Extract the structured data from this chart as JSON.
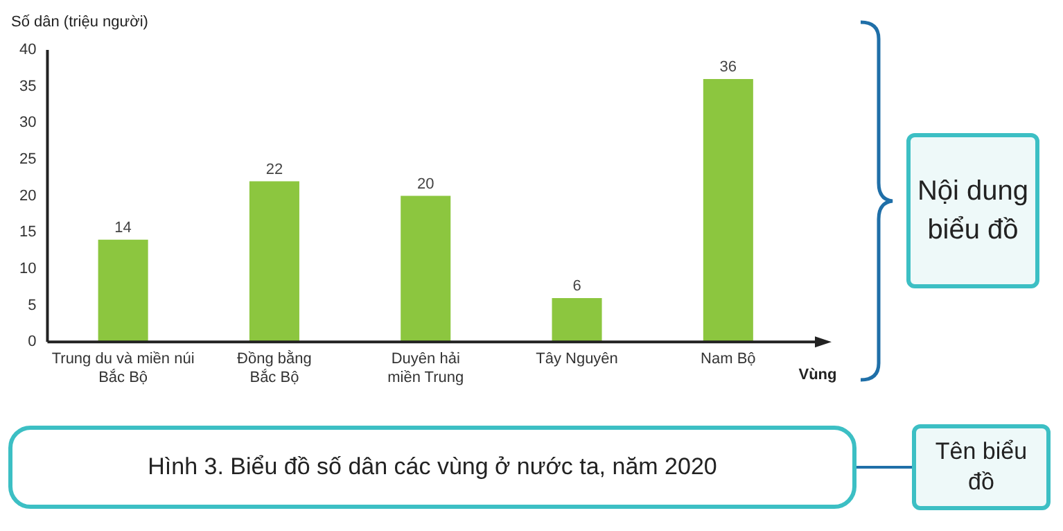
{
  "chart_data": {
    "type": "bar",
    "title": "Hình 3. Biểu đồ số dân các vùng ở nước ta, năm 2020",
    "xlabel": "Vùng",
    "ylabel": "Số dân (triệu người)",
    "categories": [
      "Trung du và miền núi\nBắc Bộ",
      "Đồng bằng\nBắc Bộ",
      "Duyên hải\nmiền Trung",
      "Tây Nguyên",
      "Nam Bộ"
    ],
    "values": [
      14,
      22,
      20,
      6,
      36
    ],
    "color": "#8cc63f",
    "data_labels": true,
    "ylim": [
      0,
      40
    ],
    "yticks": [
      0,
      5,
      10,
      15,
      20,
      25,
      30,
      35,
      40
    ],
    "grid": false,
    "legend": false,
    "annotations": [
      "Nội dung biểu đồ",
      "Tên biểu đồ"
    ]
  }
}
